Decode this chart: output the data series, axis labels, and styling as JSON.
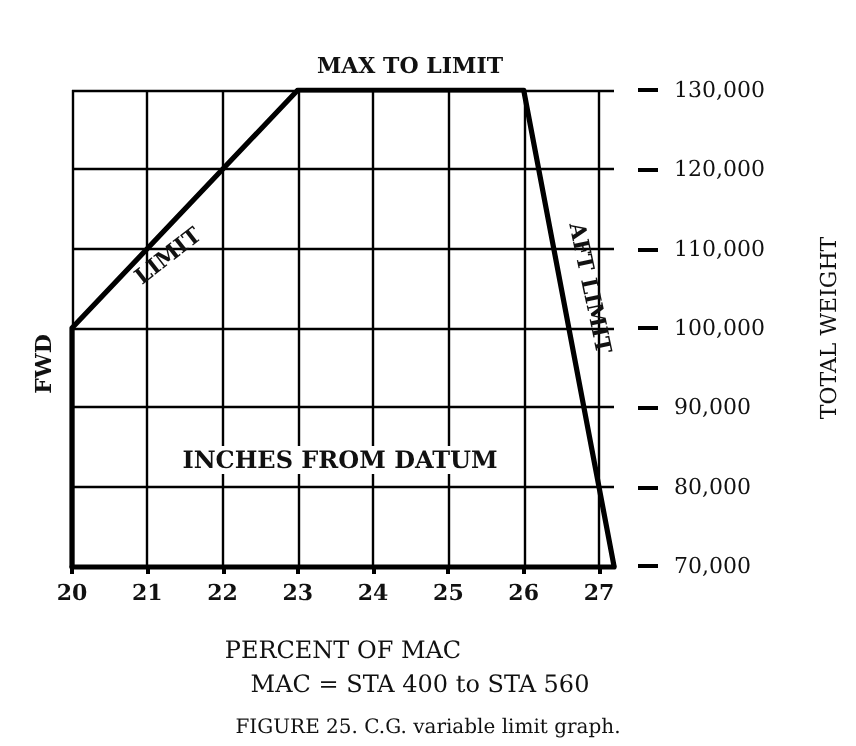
{
  "chart_data": {
    "type": "line",
    "xlabel": "PERCENT OF MAC",
    "ylabel": "TOTAL WEIGHT",
    "x": [
      20,
      20,
      23,
      26,
      27.2
    ],
    "series": [
      {
        "color": "#000000",
        "values": [
          70000,
          100000,
          130000,
          130000,
          70000
        ]
      }
    ],
    "xlim": [
      20,
      27.2
    ],
    "xticks": [
      20,
      21,
      22,
      23,
      24,
      25,
      26,
      27
    ],
    "ylim": [
      70000,
      130000
    ],
    "yticks": [
      {
        "value": 70000,
        "label": "70,000"
      },
      {
        "value": 80000,
        "label": "80,000"
      },
      {
        "value": 90000,
        "label": "90,000"
      },
      {
        "value": 100000,
        "label": "100,000"
      },
      {
        "value": 110000,
        "label": "110,000"
      },
      {
        "value": 120000,
        "label": "120,000"
      },
      {
        "value": 130000,
        "label": "130,000"
      }
    ],
    "grid": true,
    "marker": "none",
    "line_style": "solid",
    "annotations": [
      "FWD",
      "LIMIT",
      "MAX TO LIMIT",
      "AFT LIMIT",
      "INCHES FROM DATUM",
      "MAC = STA 400 to STA 560",
      "FIGURE 25. C.G. variable limit graph."
    ]
  }
}
